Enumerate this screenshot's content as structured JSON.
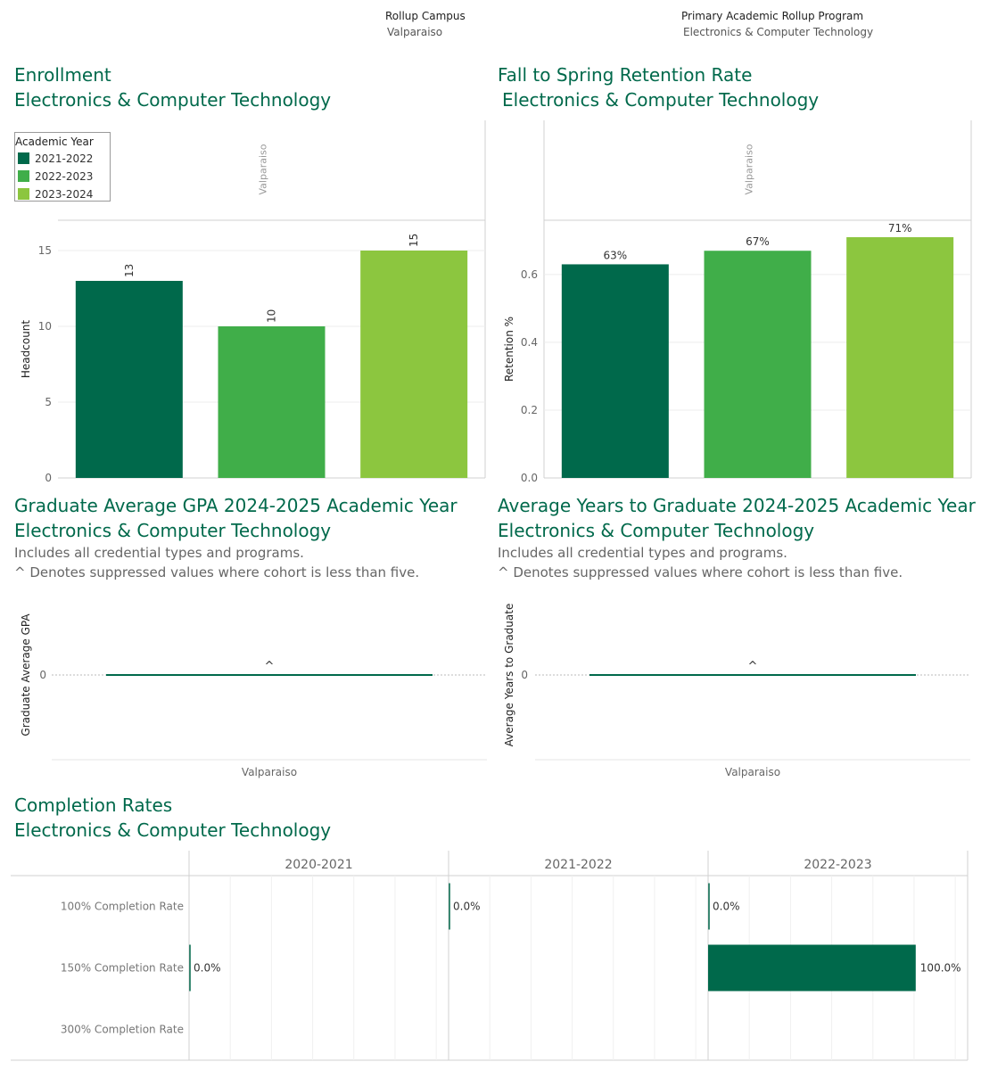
{
  "filters": {
    "campus": {
      "label": "Rollup Campus",
      "value": "Valparaiso"
    },
    "program": {
      "label": "Primary Academic Rollup Program",
      "value": "Electronics & Computer Technology"
    }
  },
  "colors": {
    "dark": "#00694b",
    "mid": "#40ae49",
    "light": "#8cc63f",
    "title": "#00694b"
  },
  "legend": {
    "title": "Academic Year",
    "items": [
      {
        "label": "2021-2022",
        "color": "#00694b"
      },
      {
        "label": "2022-2023",
        "color": "#40ae49"
      },
      {
        "label": "2023-2024",
        "color": "#8cc63f"
      }
    ]
  },
  "sections": {
    "enrollment": {
      "title": "Enrollment",
      "subtitle": "Electronics & Computer Technology"
    },
    "retention": {
      "title": "Fall to Spring Retention Rate",
      "subtitle": "Electronics & Computer Technology"
    },
    "gpa": {
      "title": "Graduate Average GPA 2024-2025 Academic Year",
      "subtitle": "Electronics & Computer Technology",
      "note1": "Includes all credential types and programs.",
      "note2": "^ Denotes suppressed values where cohort is less than five."
    },
    "years": {
      "title": "Average Years to Graduate 2024-2025 Academic Year",
      "subtitle": "Electronics & Computer Technology",
      "note1": "Includes all credential types and programs.",
      "note2": "^ Denotes suppressed values where cohort is less than five."
    },
    "completion": {
      "title": "Completion Rates",
      "subtitle": "Electronics & Computer Technology"
    }
  },
  "chart_data": [
    {
      "id": "enrollment",
      "type": "bar",
      "panel_label": "Valparaiso",
      "categories": [
        "2021-2022",
        "2022-2023",
        "2023-2024"
      ],
      "values": [
        13,
        10,
        15
      ],
      "value_labels": [
        "13",
        "10",
        "15"
      ],
      "ylabel": "Headcount",
      "ylim": [
        0,
        17
      ],
      "yticks": [
        0,
        5,
        10,
        15
      ],
      "ytick_labels": [
        "0",
        "5",
        "10",
        "15"
      ]
    },
    {
      "id": "retention",
      "type": "bar",
      "panel_label": "Valparaiso",
      "categories": [
        "2021-2022",
        "2022-2023",
        "2023-2024"
      ],
      "values": [
        0.63,
        0.67,
        0.71
      ],
      "value_labels": [
        "63%",
        "67%",
        "71%"
      ],
      "ylabel": "Retention %",
      "ylim": [
        0,
        0.76
      ],
      "yticks": [
        0,
        0.2,
        0.4,
        0.6
      ],
      "ytick_labels": [
        "0.0",
        "0.2",
        "0.4",
        "0.6"
      ]
    },
    {
      "id": "gpa",
      "type": "bar",
      "categories": [
        "Valparaiso"
      ],
      "values": [
        0
      ],
      "value_labels": [
        "^"
      ],
      "ylabel": "Graduate Average GPA",
      "yticks": [
        0
      ],
      "ytick_labels": [
        "0"
      ]
    },
    {
      "id": "years",
      "type": "bar",
      "categories": [
        "Valparaiso"
      ],
      "values": [
        0
      ],
      "value_labels": [
        "^"
      ],
      "ylabel": "Average Years to Graduate",
      "yticks": [
        0
      ],
      "ytick_labels": [
        "0"
      ]
    },
    {
      "id": "completion",
      "type": "bar",
      "orientation": "horizontal",
      "columns": [
        "2020-2021",
        "2021-2022",
        "2022-2023"
      ],
      "rows": [
        "100% Completion Rate",
        "150% Completion Rate",
        "300% Completion Rate"
      ],
      "xlim": [
        0,
        1.25
      ],
      "cells": [
        {
          "column": "2020-2021",
          "row": "150% Completion Rate",
          "value": 0.0,
          "label": "0.0%"
        },
        {
          "column": "2021-2022",
          "row": "100% Completion Rate",
          "value": 0.0,
          "label": "0.0%"
        },
        {
          "column": "2022-2023",
          "row": "100% Completion Rate",
          "value": 0.0,
          "label": "0.0%"
        },
        {
          "column": "2022-2023",
          "row": "150% Completion Rate",
          "value": 1.0,
          "label": "100.0%"
        }
      ]
    }
  ]
}
